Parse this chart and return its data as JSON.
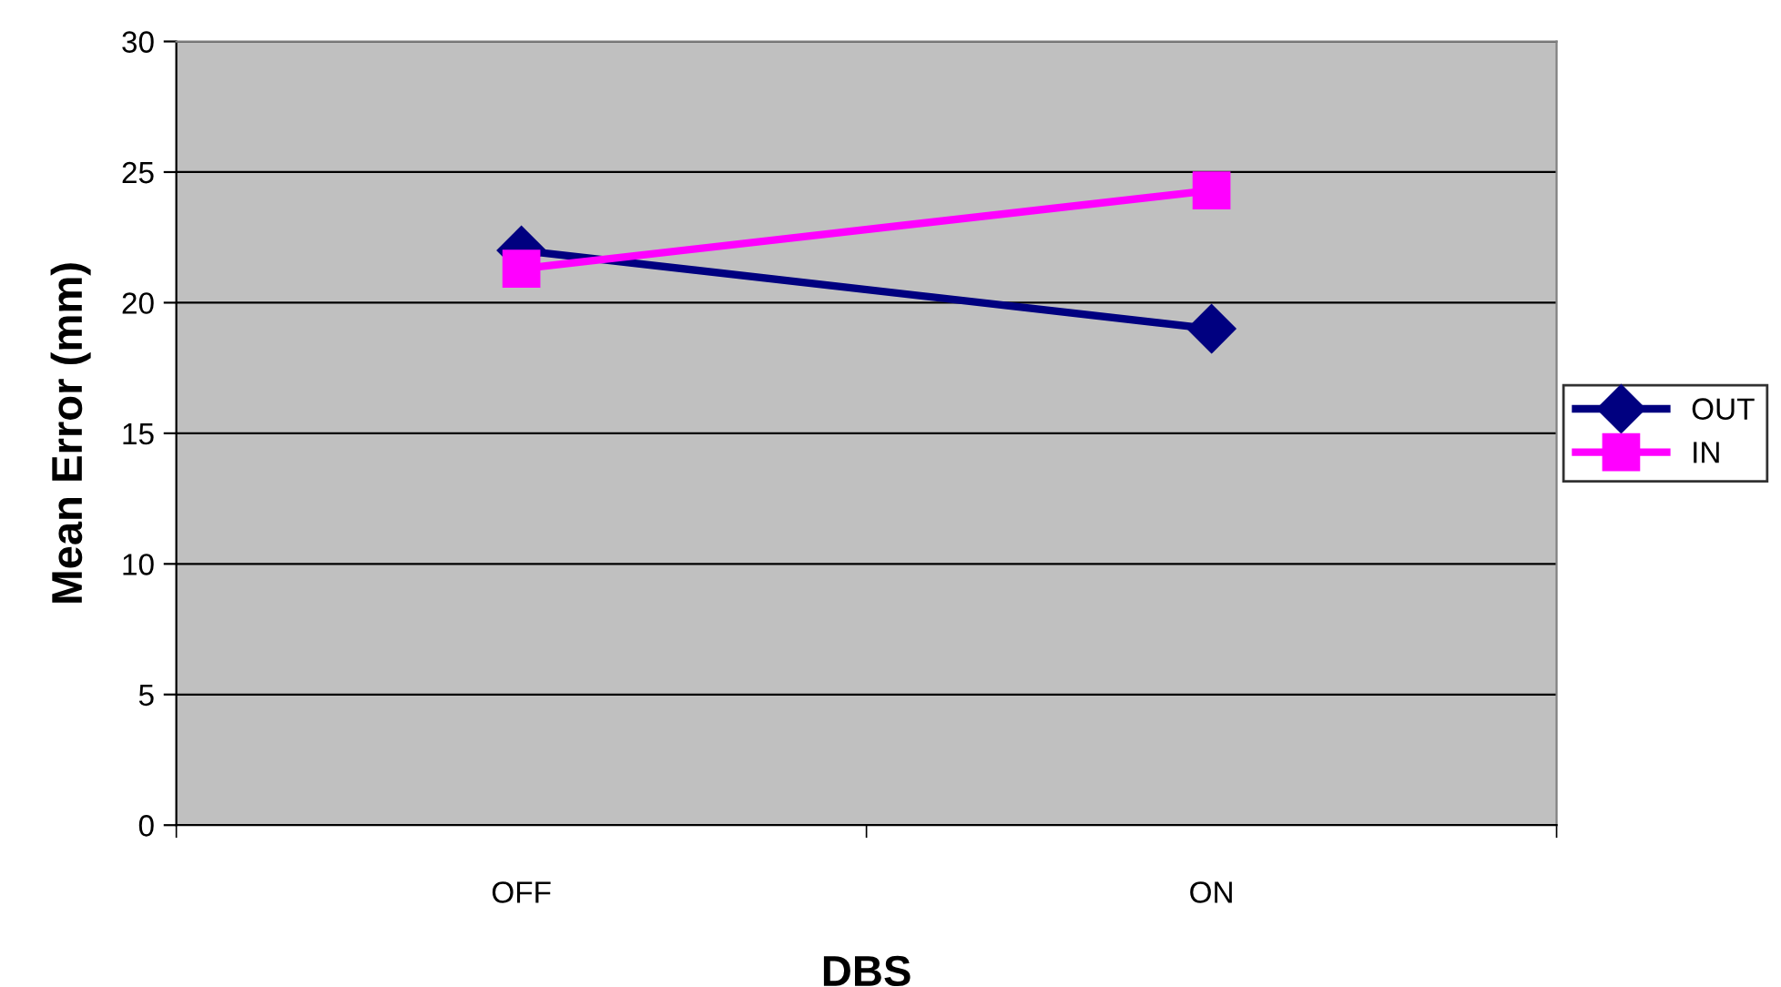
{
  "chart_data": {
    "type": "line",
    "xlabel": "DBS",
    "ylabel": "Mean Error (mm)",
    "categories": [
      "OFF",
      "ON"
    ],
    "series": [
      {
        "name": "OUT",
        "color": "#000080",
        "values": [
          22,
          19
        ],
        "marker": "diamond"
      },
      {
        "name": "IN",
        "color": "#ff00ff",
        "values": [
          21.3,
          24.3
        ],
        "marker": "square"
      }
    ],
    "ylim": [
      0,
      30
    ],
    "yticks": [
      0,
      5,
      10,
      15,
      20,
      25,
      30
    ],
    "grid": "y",
    "legend": "right",
    "line_style": "solid"
  }
}
